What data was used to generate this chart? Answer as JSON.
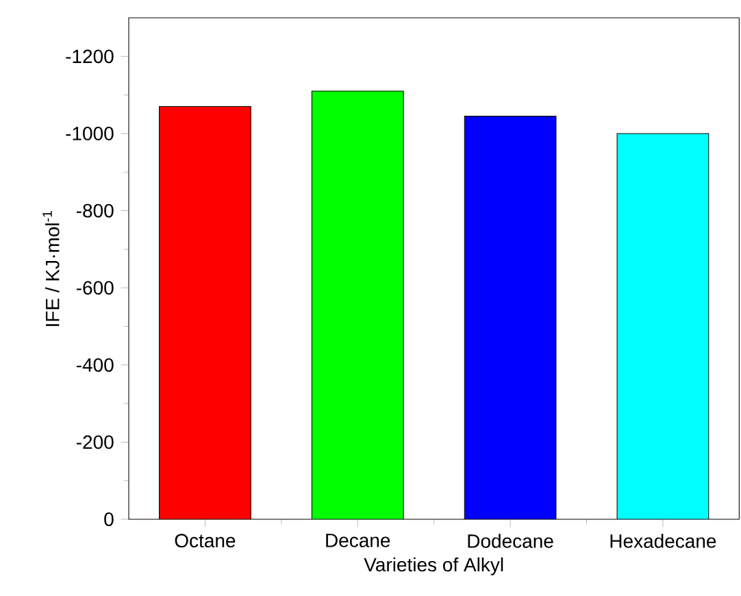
{
  "chart_data": {
    "type": "bar",
    "xlabel": "Varieties of Alkyl",
    "ylabel": "IFE / KJ·mol$^{-1}$",
    "categories": [
      "Octane",
      "Decane",
      "Dodecane",
      "Hexadecane"
    ],
    "values": [
      -1070,
      -1110,
      -1045,
      -1000
    ],
    "colors": [
      "#ff0000",
      "#00ff00",
      "#0000ff",
      "#00ffff"
    ],
    "ylim": [
      0,
      -1300
    ],
    "yticks": [
      0,
      -200,
      -400,
      -600,
      -800,
      -1000,
      -1200
    ]
  }
}
